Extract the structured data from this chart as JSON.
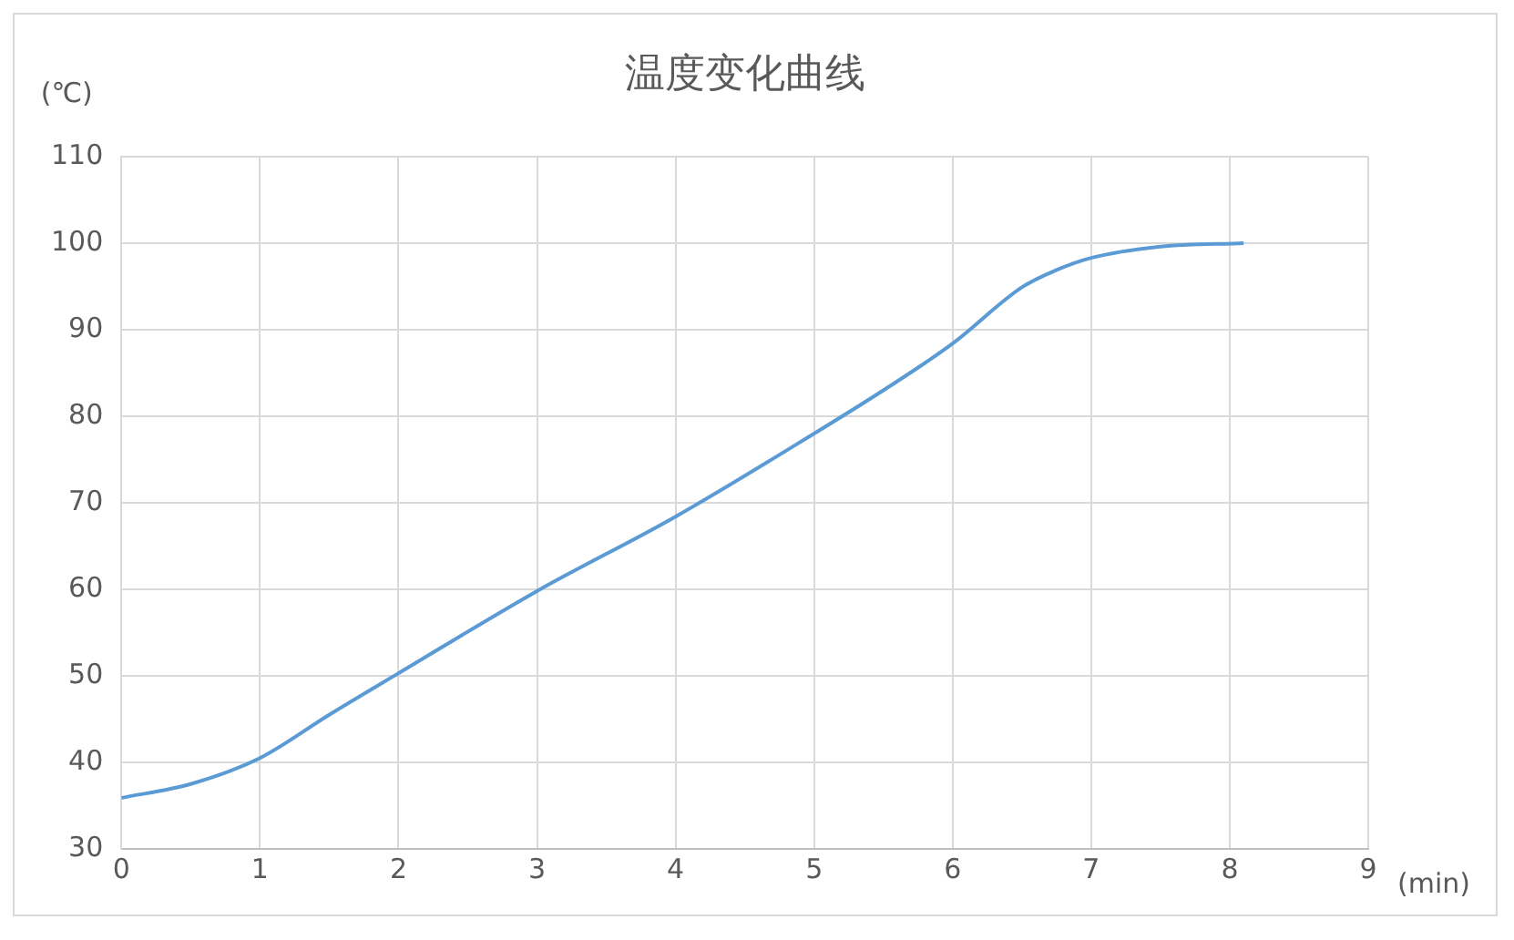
{
  "chart_data": {
    "type": "line",
    "title": "温度变化曲线",
    "xlabel": "(min)",
    "ylabel": "(℃)",
    "x": [
      0,
      0.5,
      1,
      1.5,
      2,
      3,
      4,
      5,
      5.5,
      6,
      6.5,
      6.75,
      7,
      7.5,
      8.1
    ],
    "series": [
      {
        "color": "#5b9bd5",
        "values": [
          35.9,
          37.5,
          40.5,
          45.5,
          50.3,
          59.8,
          68.4,
          78,
          83,
          88.4,
          94.9,
          96.9,
          98.3,
          99.6,
          100
        ]
      }
    ],
    "xlim": [
      0,
      9
    ],
    "xticks": [
      0,
      1,
      2,
      3,
      4,
      5,
      6,
      7,
      8,
      9
    ],
    "ylim": [
      30,
      110
    ],
    "yticks": [
      30,
      40,
      50,
      60,
      70,
      80,
      90,
      100,
      110
    ],
    "grid": true,
    "legend": false,
    "marker": "none",
    "line_style": "solid"
  }
}
